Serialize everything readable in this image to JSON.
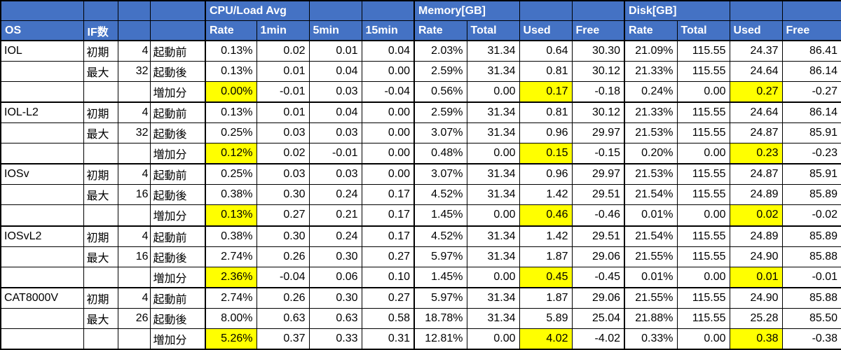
{
  "header": {
    "groups": {
      "cpu": "CPU/Load Avg",
      "memory": "Memory[GB]",
      "disk": "Disk[GB]"
    },
    "columns": {
      "os": "OS",
      "if_count": "IF数",
      "cpu": [
        "Rate",
        "1min",
        "5min",
        "15min"
      ],
      "memory": [
        "Rate",
        "Total",
        "Used",
        "Free"
      ],
      "disk": [
        "Rate",
        "Total",
        "Used",
        "Free"
      ]
    }
  },
  "colors": {
    "header_bg": "#4472C4",
    "header_text": "#FFFFFF",
    "highlight": "#FFFF00",
    "border": "#000000"
  },
  "groups": [
    {
      "os": "IOL",
      "rows": [
        {
          "stage": "初期",
          "if_count": "4",
          "phase": "起動前",
          "cpu": [
            "0.13%",
            "0.02",
            "0.01",
            "0.04"
          ],
          "memory": [
            "2.03%",
            "31.34",
            "0.64",
            "30.30"
          ],
          "disk": [
            "21.09%",
            "115.55",
            "24.37",
            "86.41"
          ]
        },
        {
          "stage": "最大",
          "if_count": "32",
          "phase": "起動後",
          "cpu": [
            "0.13%",
            "0.01",
            "0.04",
            "0.00"
          ],
          "memory": [
            "2.59%",
            "31.34",
            "0.81",
            "30.12"
          ],
          "disk": [
            "21.33%",
            "115.55",
            "24.64",
            "86.14"
          ]
        },
        {
          "stage": "",
          "if_count": "",
          "phase": "増加分",
          "cpu": [
            "0.00%",
            "-0.01",
            "0.03",
            "-0.04"
          ],
          "memory": [
            "0.56%",
            "0.00",
            "0.17",
            "-0.18"
          ],
          "disk": [
            "0.24%",
            "0.00",
            "0.27",
            "-0.27"
          ],
          "highlights": {
            "cpu": [
              0
            ],
            "memory": [
              2
            ],
            "disk": [
              2
            ]
          }
        }
      ]
    },
    {
      "os": "IOL-L2",
      "rows": [
        {
          "stage": "初期",
          "if_count": "4",
          "phase": "起動前",
          "cpu": [
            "0.13%",
            "0.01",
            "0.04",
            "0.00"
          ],
          "memory": [
            "2.59%",
            "31.34",
            "0.81",
            "30.12"
          ],
          "disk": [
            "21.33%",
            "115.55",
            "24.64",
            "86.14"
          ]
        },
        {
          "stage": "最大",
          "if_count": "32",
          "phase": "起動後",
          "cpu": [
            "0.25%",
            "0.03",
            "0.03",
            "0.00"
          ],
          "memory": [
            "3.07%",
            "31.34",
            "0.96",
            "29.97"
          ],
          "disk": [
            "21.53%",
            "115.55",
            "24.87",
            "85.91"
          ]
        },
        {
          "stage": "",
          "if_count": "",
          "phase": "増加分",
          "cpu": [
            "0.12%",
            "0.02",
            "-0.01",
            "0.00"
          ],
          "memory": [
            "0.48%",
            "0.00",
            "0.15",
            "-0.15"
          ],
          "disk": [
            "0.20%",
            "0.00",
            "0.23",
            "-0.23"
          ],
          "highlights": {
            "cpu": [
              0
            ],
            "memory": [
              2
            ],
            "disk": [
              2
            ]
          }
        }
      ]
    },
    {
      "os": "IOSv",
      "rows": [
        {
          "stage": "初期",
          "if_count": "4",
          "phase": "起動前",
          "cpu": [
            "0.25%",
            "0.03",
            "0.03",
            "0.00"
          ],
          "memory": [
            "3.07%",
            "31.34",
            "0.96",
            "29.97"
          ],
          "disk": [
            "21.53%",
            "115.55",
            "24.87",
            "85.91"
          ]
        },
        {
          "stage": "最大",
          "if_count": "16",
          "phase": "起動後",
          "cpu": [
            "0.38%",
            "0.30",
            "0.24",
            "0.17"
          ],
          "memory": [
            "4.52%",
            "31.34",
            "1.42",
            "29.51"
          ],
          "disk": [
            "21.54%",
            "115.55",
            "24.89",
            "85.89"
          ]
        },
        {
          "stage": "",
          "if_count": "",
          "phase": "増加分",
          "cpu": [
            "0.13%",
            "0.27",
            "0.21",
            "0.17"
          ],
          "memory": [
            "1.45%",
            "0.00",
            "0.46",
            "-0.46"
          ],
          "disk": [
            "0.01%",
            "0.00",
            "0.02",
            "-0.02"
          ],
          "highlights": {
            "cpu": [
              0
            ],
            "memory": [
              2
            ],
            "disk": [
              2
            ]
          }
        }
      ]
    },
    {
      "os": "IOSvL2",
      "rows": [
        {
          "stage": "初期",
          "if_count": "4",
          "phase": "起動前",
          "cpu": [
            "0.38%",
            "0.30",
            "0.24",
            "0.17"
          ],
          "memory": [
            "4.52%",
            "31.34",
            "1.42",
            "29.51"
          ],
          "disk": [
            "21.54%",
            "115.55",
            "24.89",
            "85.89"
          ]
        },
        {
          "stage": "最大",
          "if_count": "16",
          "phase": "起動後",
          "cpu": [
            "2.74%",
            "0.26",
            "0.30",
            "0.27"
          ],
          "memory": [
            "5.97%",
            "31.34",
            "1.87",
            "29.06"
          ],
          "disk": [
            "21.55%",
            "115.55",
            "24.90",
            "85.88"
          ]
        },
        {
          "stage": "",
          "if_count": "",
          "phase": "増加分",
          "cpu": [
            "2.36%",
            "-0.04",
            "0.06",
            "0.10"
          ],
          "memory": [
            "1.45%",
            "0.00",
            "0.45",
            "-0.45"
          ],
          "disk": [
            "0.01%",
            "0.00",
            "0.01",
            "-0.01"
          ],
          "highlights": {
            "cpu": [
              0
            ],
            "memory": [
              2
            ],
            "disk": [
              2
            ]
          }
        }
      ]
    },
    {
      "os": "CAT8000V",
      "rows": [
        {
          "stage": "初期",
          "if_count": "4",
          "phase": "起動前",
          "cpu": [
            "2.74%",
            "0.26",
            "0.30",
            "0.27"
          ],
          "memory": [
            "5.97%",
            "31.34",
            "1.87",
            "29.06"
          ],
          "disk": [
            "21.55%",
            "115.55",
            "24.90",
            "85.88"
          ]
        },
        {
          "stage": "最大",
          "if_count": "26",
          "phase": "起動後",
          "cpu": [
            "8.00%",
            "0.63",
            "0.63",
            "0.58"
          ],
          "memory": [
            "18.78%",
            "31.34",
            "5.89",
            "25.04"
          ],
          "disk": [
            "21.88%",
            "115.55",
            "25.28",
            "85.50"
          ]
        },
        {
          "stage": "",
          "if_count": "",
          "phase": "増加分",
          "cpu": [
            "5.26%",
            "0.37",
            "0.33",
            "0.31"
          ],
          "memory": [
            "12.81%",
            "0.00",
            "4.02",
            "-4.02"
          ],
          "disk": [
            "0.33%",
            "0.00",
            "0.38",
            "-0.38"
          ],
          "highlights": {
            "cpu": [
              0
            ],
            "memory": [
              2
            ],
            "disk": [
              2
            ]
          }
        }
      ]
    }
  ]
}
